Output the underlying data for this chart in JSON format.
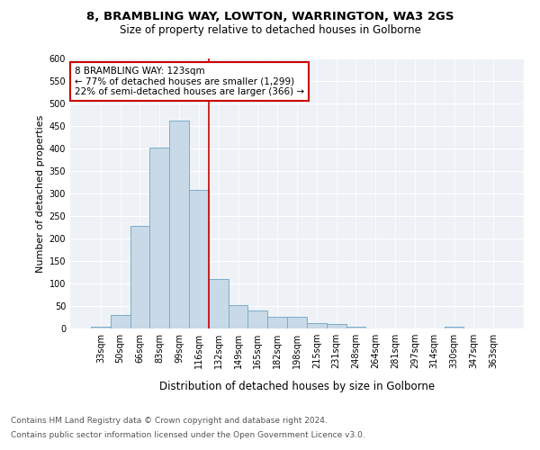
{
  "title1": "8, BRAMBLING WAY, LOWTON, WARRINGTON, WA3 2GS",
  "title2": "Size of property relative to detached houses in Golborne",
  "xlabel": "Distribution of detached houses by size in Golborne",
  "ylabel": "Number of detached properties",
  "categories": [
    "33sqm",
    "50sqm",
    "66sqm",
    "83sqm",
    "99sqm",
    "116sqm",
    "132sqm",
    "149sqm",
    "165sqm",
    "182sqm",
    "198sqm",
    "215sqm",
    "231sqm",
    "248sqm",
    "264sqm",
    "281sqm",
    "297sqm",
    "314sqm",
    "330sqm",
    "347sqm",
    "363sqm"
  ],
  "values": [
    5,
    30,
    228,
    402,
    463,
    308,
    111,
    53,
    40,
    27,
    27,
    13,
    11,
    5,
    0,
    0,
    0,
    0,
    5,
    0,
    0
  ],
  "bar_color": "#c8d9e8",
  "bar_edge_color": "#7aaec8",
  "bar_linewidth": 0.7,
  "vline_x_index": 5.5,
  "vline_color": "#cc0000",
  "vline_linewidth": 1.2,
  "annotation_line1": "8 BRAMBLING WAY: 123sqm",
  "annotation_line2": "← 77% of detached houses are smaller (1,299)",
  "annotation_line3": "22% of semi-detached houses are larger (366) →",
  "annotation_box_color": "#cc0000",
  "ylim": [
    0,
    600
  ],
  "yticks": [
    0,
    50,
    100,
    150,
    200,
    250,
    300,
    350,
    400,
    450,
    500,
    550,
    600
  ],
  "footnote1": "Contains HM Land Registry data © Crown copyright and database right 2024.",
  "footnote2": "Contains public sector information licensed under the Open Government Licence v3.0.",
  "plot_bg_color": "#eef2f7",
  "grid_color": "white",
  "title1_fontsize": 9.5,
  "title2_fontsize": 8.5,
  "xlabel_fontsize": 8.5,
  "ylabel_fontsize": 8,
  "tick_fontsize": 7,
  "annot_fontsize": 7.5,
  "footnote_fontsize": 6.5
}
